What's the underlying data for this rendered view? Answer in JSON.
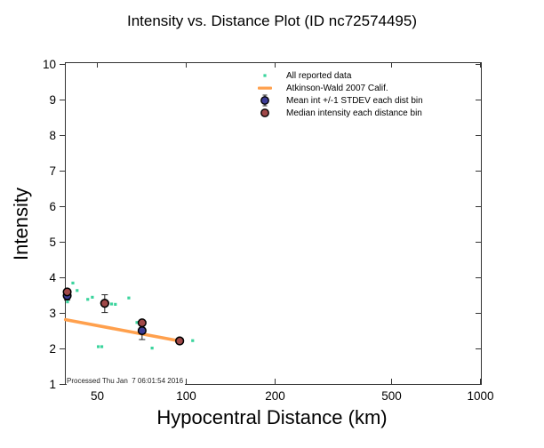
{
  "footer": {
    "processed": "Processed Thu Jan  7 06:01:54 2016"
  },
  "colors": {
    "background": "#ffffff",
    "axis": "#333333",
    "tick_text": "#000000",
    "errorbar": "#222222",
    "green": "#3BD49D",
    "orange": "#FFA04D",
    "blue": "#3C3C96",
    "brown": "#A04848"
  },
  "chart_data": {
    "type": "scatter",
    "title": "Intensity vs. Distance Plot (ID nc72574495)",
    "xlabel": "Hypocentral Distance (km)",
    "ylabel": "Intensity",
    "x_scale": "log",
    "xlim": [
      38.8,
      1007
    ],
    "ylim": [
      1,
      10
    ],
    "x_ticks": [
      50,
      100,
      200,
      500,
      1000
    ],
    "y_ticks": [
      1,
      2,
      3,
      4,
      5,
      6,
      7,
      8,
      9,
      10
    ],
    "grid": false,
    "legend_position": "inside-top-center",
    "series": [
      {
        "name": "All reported data",
        "type": "scatter",
        "marker": "small-green-square",
        "color": "#3BD49D",
        "points": [
          [
            41.3,
            3.84
          ],
          [
            42.7,
            3.63
          ],
          [
            39.6,
            3.31
          ],
          [
            46.4,
            3.38
          ],
          [
            48.1,
            3.44
          ],
          [
            55.9,
            3.25
          ],
          [
            57.6,
            3.24
          ],
          [
            64.0,
            3.42
          ],
          [
            68.2,
            2.73
          ],
          [
            50.4,
            2.05
          ],
          [
            51.8,
            2.05
          ],
          [
            76.8,
            2.01
          ],
          [
            105.5,
            2.22
          ]
        ]
      },
      {
        "name": "Atkinson-Wald 2007 Calif.",
        "type": "line",
        "color": "#FFA04D",
        "points": [
          [
            39.0,
            2.81
          ],
          [
            95.3,
            2.21
          ]
        ]
      },
      {
        "name": "Mean int +/-1 STDEV each dist bin",
        "type": "scatter-errorbar",
        "marker": "blue-circle",
        "color": "#3C3C96",
        "points": [
          {
            "x": 39.5,
            "mean": 3.48,
            "lo": 3.36,
            "hi": 3.62
          },
          {
            "x": 53.0,
            "mean": 3.27,
            "lo": 3.01,
            "hi": 3.51
          },
          {
            "x": 71.0,
            "mean": 2.5,
            "lo": 2.25,
            "hi": 2.76
          },
          {
            "x": 95.3,
            "mean": 2.21
          }
        ]
      },
      {
        "name": "Median intensity each distance bin",
        "type": "scatter",
        "marker": "brown-circle",
        "color": "#A04848",
        "points": [
          [
            39.5,
            3.59
          ],
          [
            53.0,
            3.27
          ],
          [
            71.0,
            2.72
          ],
          [
            95.3,
            2.21
          ]
        ]
      }
    ]
  }
}
